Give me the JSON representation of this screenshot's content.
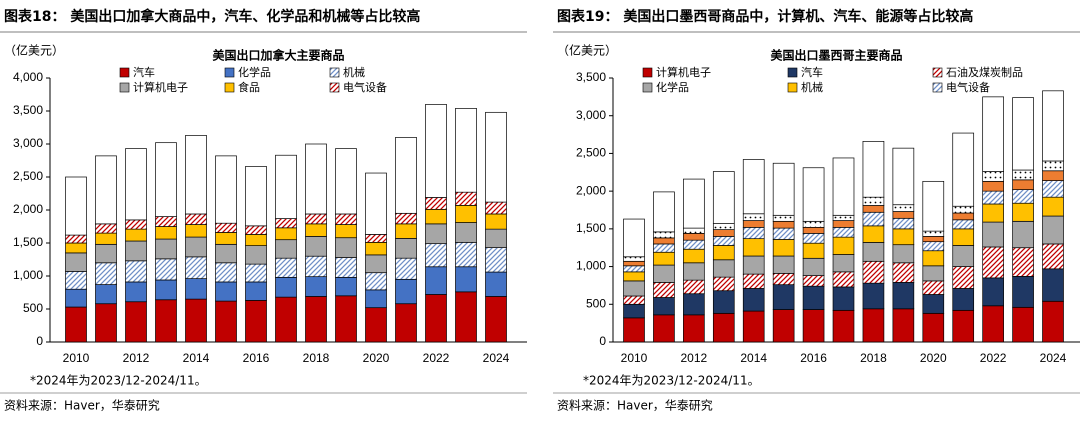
{
  "panels": [
    {
      "header": "图表18：  美国出口加拿大商品中，汽车、化学品和机械等占比较高",
      "chart_data": {
        "type": "stacked_bar",
        "title": "美国出口加拿大主要商品",
        "y_label": "（亿美元）",
        "categories": [
          "2010",
          null,
          "2012",
          null,
          "2014",
          null,
          "2016",
          null,
          "2018",
          null,
          "2020",
          null,
          "2022",
          null,
          "2024"
        ],
        "ylim": [
          0,
          4000
        ],
        "yticks": [
          0,
          500,
          {
            "value": 1000,
            "label": "1,000"
          },
          {
            "value": 1500,
            "label": "1,500"
          },
          {
            "value": 2000,
            "label": "2,000"
          },
          {
            "value": 2500,
            "label": "2,500"
          },
          {
            "value": 3000,
            "label": "3,000"
          },
          {
            "value": 3500,
            "label": "3,500"
          },
          {
            "value": 4000,
            "label": "4,000"
          }
        ],
        "series": [
          {
            "name": "汽车",
            "color": "#c00000",
            "pattern": "solid",
            "values": [
              530,
              580,
              610,
              640,
              650,
              620,
              630,
              680,
              690,
              700,
              520,
              580,
              720,
              760,
              690
            ]
          },
          {
            "name": "化学品",
            "color": "#4472c4",
            "pattern": "solid",
            "values": [
              270,
              290,
              300,
              300,
              310,
              290,
              280,
              300,
              300,
              280,
              270,
              370,
              420,
              380,
              370
            ]
          },
          {
            "name": "机械",
            "color": "#6f8fc7",
            "pattern": "hatch",
            "values": [
              270,
              330,
              320,
              320,
              330,
              290,
              270,
              290,
              310,
              300,
              260,
              320,
              350,
              370,
              370
            ]
          },
          {
            "name": "计算机电子",
            "color": "#a6a6a6",
            "pattern": "solid",
            "values": [
              280,
              280,
              300,
              300,
              300,
              280,
              280,
              280,
              300,
              300,
              270,
              300,
              300,
              300,
              280
            ]
          },
          {
            "name": "食品",
            "color": "#ffc000",
            "pattern": "solid",
            "values": [
              150,
              170,
              180,
              190,
              190,
              180,
              170,
              180,
              190,
              200,
              190,
              220,
              220,
              260,
              230
            ]
          },
          {
            "name": "电气设备",
            "color": "#c00000",
            "pattern": "hatch",
            "values": [
              120,
              140,
              140,
              150,
              160,
              140,
              130,
              140,
              150,
              160,
              120,
              160,
              180,
              200,
              180
            ]
          },
          {
            "color": "#ffffff",
            "pattern": "solid",
            "values": [
              880,
              1030,
              1080,
              1120,
              1190,
              1020,
              900,
              960,
              1060,
              990,
              930,
              1150,
              1410,
              1270,
              1360
            ]
          }
        ]
      },
      "note": "*2024年为2023/12-2024/11。",
      "source": "资料来源：Haver，华泰研究"
    },
    {
      "header": "图表19：  美国出口墨西哥商品中，计算机、汽车、能源等占比较高",
      "chart_data": {
        "type": "stacked_bar",
        "title": "美国出口墨西哥主要商品",
        "y_label": "（亿美元）",
        "categories": [
          "2010",
          null,
          "2012",
          null,
          "2014",
          null,
          "2016",
          null,
          "2018",
          null,
          "2020",
          null,
          "2022",
          null,
          "2024"
        ],
        "ylim": [
          0,
          3500
        ],
        "yticks": [
          0,
          500,
          {
            "value": 1000,
            "label": "1,000"
          },
          {
            "value": 1500,
            "label": "1,500"
          },
          {
            "value": 2000,
            "label": "2,000"
          },
          {
            "value": 2500,
            "label": "2,500"
          },
          {
            "value": 3000,
            "label": "3,000"
          },
          {
            "value": 3500,
            "label": "3,500"
          }
        ],
        "series": [
          {
            "name": "计算机电子",
            "color": "#c00000",
            "pattern": "solid",
            "values": [
              320,
              360,
              360,
              380,
              410,
              430,
              430,
              420,
              440,
              440,
              380,
              420,
              480,
              460,
              540
            ]
          },
          {
            "name": "汽车",
            "color": "#1f3864",
            "pattern": "solid",
            "values": [
              180,
              230,
              280,
              300,
              300,
              330,
              310,
              310,
              340,
              350,
              250,
              290,
              370,
              410,
              430
            ]
          },
          {
            "name": "石油及煤炭制品",
            "color": "#c00000",
            "pattern": "hatch",
            "values": [
              110,
              200,
              180,
              180,
              190,
              150,
              140,
              200,
              290,
              260,
              180,
              290,
              410,
              380,
              330
            ]
          },
          {
            "name": "化学品",
            "color": "#a6a6a6",
            "pattern": "solid",
            "values": [
              200,
              230,
              230,
              230,
              240,
              230,
              230,
              230,
              250,
              240,
              200,
              280,
              330,
              350,
              370
            ]
          },
          {
            "name": "机械",
            "color": "#ffc000",
            "pattern": "solid",
            "values": [
              120,
              170,
              180,
              190,
              230,
              220,
              200,
              230,
              220,
              210,
              200,
              220,
              240,
              240,
              250
            ]
          },
          {
            "name": "电气设备",
            "color": "#6f8fc7",
            "pattern": "hatch",
            "values": [
              80,
              110,
              120,
              120,
              150,
              150,
              130,
              130,
              180,
              140,
              120,
              120,
              170,
              180,
              220
            ]
          },
          {
            "color": "#ed7d31",
            "pattern": "solid",
            "values": [
              60,
              80,
              90,
              90,
              90,
              90,
              80,
              90,
              90,
              90,
              70,
              90,
              130,
              130,
              130
            ]
          },
          {
            "color": "#000000",
            "pattern": "dots",
            "values": [
              60,
              80,
              70,
              80,
              90,
              80,
              80,
              70,
              110,
              90,
              70,
              90,
              130,
              130,
              130
            ]
          },
          {
            "color": "#ffffff",
            "pattern": "solid",
            "values": [
              500,
              530,
              650,
              690,
              720,
              690,
              710,
              760,
              740,
              750,
              660,
              970,
              990,
              960,
              930
            ]
          }
        ]
      },
      "note": "*2024年为2023/12-2024/11。",
      "source": "资料来源：Haver，华泰研究"
    }
  ]
}
